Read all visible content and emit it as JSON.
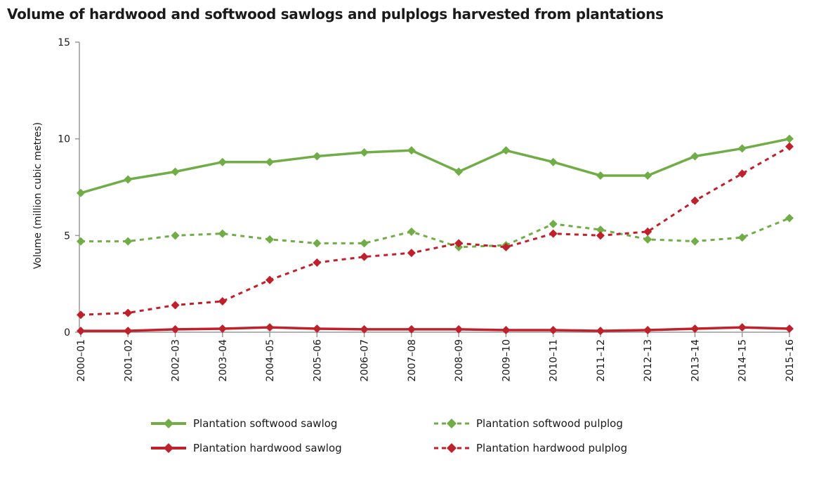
{
  "chart_data": {
    "type": "line",
    "title": "Volume of hardwood and softwood sawlogs and pulplogs harvested from plantations",
    "xlabel": "",
    "ylabel": "Volume (million cubic metres)",
    "ylim": [
      0,
      15
    ],
    "yticks": [
      0,
      5,
      10,
      15
    ],
    "grid": false,
    "legend_position": "bottom",
    "categories": [
      "2000–01",
      "2001–02",
      "2002–03",
      "2003–04",
      "2004–05",
      "2005–06",
      "2006–07",
      "2007–08",
      "2008–09",
      "2009–10",
      "2010–11",
      "2011–12",
      "2012–13",
      "2013–14",
      "2014–15",
      "2015–16"
    ],
    "series": [
      {
        "name": "Plantation softwood sawlog",
        "color": "#70ad47",
        "dash": false,
        "values": [
          7.2,
          7.9,
          8.3,
          8.8,
          8.8,
          9.1,
          9.3,
          9.4,
          8.3,
          9.4,
          8.8,
          8.1,
          8.1,
          9.1,
          9.5,
          10.0
        ]
      },
      {
        "name": "Plantation softwood pulplog",
        "color": "#70ad47",
        "dash": true,
        "values": [
          4.7,
          4.7,
          5.0,
          5.1,
          4.8,
          4.6,
          4.6,
          5.2,
          4.4,
          4.5,
          5.6,
          5.3,
          4.8,
          4.7,
          4.9,
          5.9
        ]
      },
      {
        "name": "Plantation hardwood sawlog",
        "color": "#c0202a",
        "dash": false,
        "values": [
          0.07,
          0.07,
          0.15,
          0.18,
          0.25,
          0.18,
          0.15,
          0.15,
          0.15,
          0.11,
          0.11,
          0.07,
          0.11,
          0.18,
          0.25,
          0.18
        ]
      },
      {
        "name": "Plantation hardwood pulplog",
        "color": "#c0202a",
        "dash": true,
        "values": [
          0.9,
          1.0,
          1.4,
          1.6,
          2.7,
          3.6,
          3.9,
          4.1,
          4.6,
          4.4,
          5.1,
          5.0,
          5.2,
          6.8,
          8.2,
          9.6
        ]
      }
    ]
  }
}
